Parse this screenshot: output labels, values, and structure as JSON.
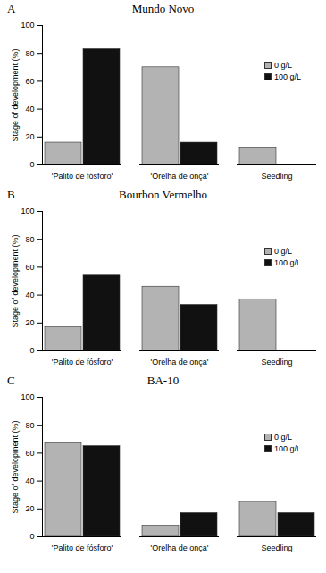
{
  "chart_data": [
    {
      "type": "bar",
      "panel": "A",
      "title": "Mundo Novo",
      "ylabel": "Stage of development (%)",
      "categories": [
        "'Palito de fósforo'",
        "'Orelha de onça'",
        "Seedling"
      ],
      "series": [
        {
          "name": "0 g/L",
          "color": "#b3b3b3",
          "values": [
            16,
            70,
            12
          ]
        },
        {
          "name": "100 g/L",
          "color": "#111111",
          "values": [
            83,
            16,
            0
          ]
        }
      ],
      "ylim": [
        0,
        100
      ],
      "yticks": [
        0,
        20,
        40,
        60,
        80,
        100
      ],
      "legend": "right"
    },
    {
      "type": "bar",
      "panel": "B",
      "title": "Bourbon Vermelho",
      "ylabel": "Stage of development (%)",
      "categories": [
        "'Palito de fósforo'",
        "'Orelha de onça'",
        "Seedling"
      ],
      "series": [
        {
          "name": "0 g/L",
          "color": "#b3b3b3",
          "values": [
            17,
            46,
            37
          ]
        },
        {
          "name": "100 g/L",
          "color": "#111111",
          "values": [
            54,
            33,
            0
          ]
        }
      ],
      "ylim": [
        0,
        100
      ],
      "yticks": [
        0,
        20,
        40,
        60,
        80,
        100
      ],
      "legend": "right"
    },
    {
      "type": "bar",
      "panel": "C",
      "title": "BA-10",
      "ylabel": "Stage of development (%)",
      "categories": [
        "'Palito de fósforo'",
        "'Orelha de onça'",
        "Seedling"
      ],
      "series": [
        {
          "name": "0 g/L",
          "color": "#b3b3b3",
          "values": [
            67,
            8,
            25
          ]
        },
        {
          "name": "100 g/L",
          "color": "#111111",
          "values": [
            65,
            17,
            17
          ]
        }
      ],
      "ylim": [
        0,
        100
      ],
      "yticks": [
        0,
        20,
        40,
        60,
        80,
        100
      ],
      "legend": "right"
    }
  ]
}
